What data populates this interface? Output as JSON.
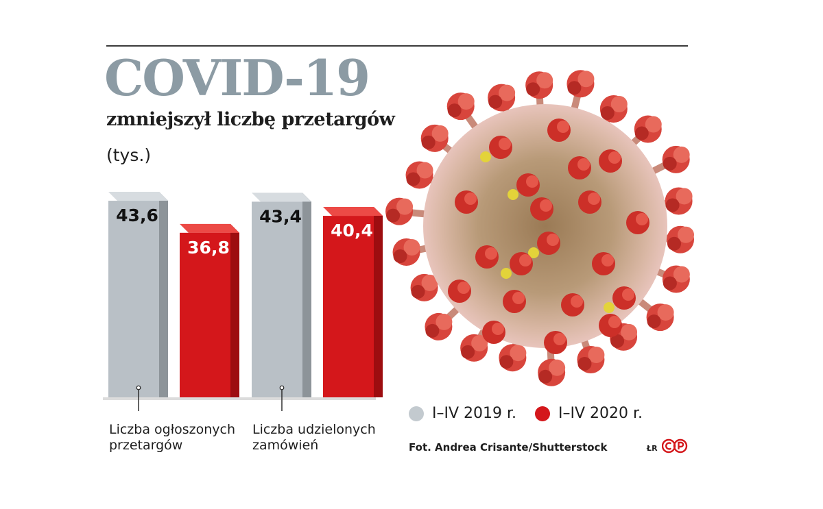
{
  "header": {
    "title": "COVID-19",
    "subtitle": "zmniejszył liczbę przetargów",
    "unit": "(tys.)"
  },
  "colors": {
    "series_2019": "#b7bec4",
    "series_2020": "#d4171b",
    "title": "#8c9ba4"
  },
  "chart_data": {
    "type": "bar",
    "title": "COVID-19",
    "subtitle": "zmniejszył liczbę przetargów",
    "ylabel": "(tys.)",
    "categories": [
      "Liczba ogłoszonych przetargów",
      "Liczba udzielonych zamówień"
    ],
    "series": [
      {
        "name": "I–IV 2019 r.",
        "values": [
          43.6,
          43.4
        ],
        "labels": [
          "43,6",
          "43,4"
        ]
      },
      {
        "name": "I–IV 2020 r.",
        "values": [
          36.8,
          40.4
        ],
        "labels": [
          "36,8",
          "40,4"
        ]
      }
    ],
    "ylim": [
      0,
      46
    ],
    "grid": false,
    "legend_position": "bottom-right"
  },
  "categories_display": [
    {
      "line1": "Liczba ogłoszonych",
      "line2": "przetargów"
    },
    {
      "line1": "Liczba udzielonych",
      "line2": "zamówień"
    }
  ],
  "legend": {
    "items": [
      {
        "label": "I–IV 2019 r."
      },
      {
        "label": "I–IV 2020 r."
      }
    ]
  },
  "footer": {
    "credit": "Fot. Andrea Crisante/Shutterstock",
    "initials": "ŁR",
    "logo_text": "CP"
  },
  "image": {
    "icon": "coronavirus-illustration"
  }
}
